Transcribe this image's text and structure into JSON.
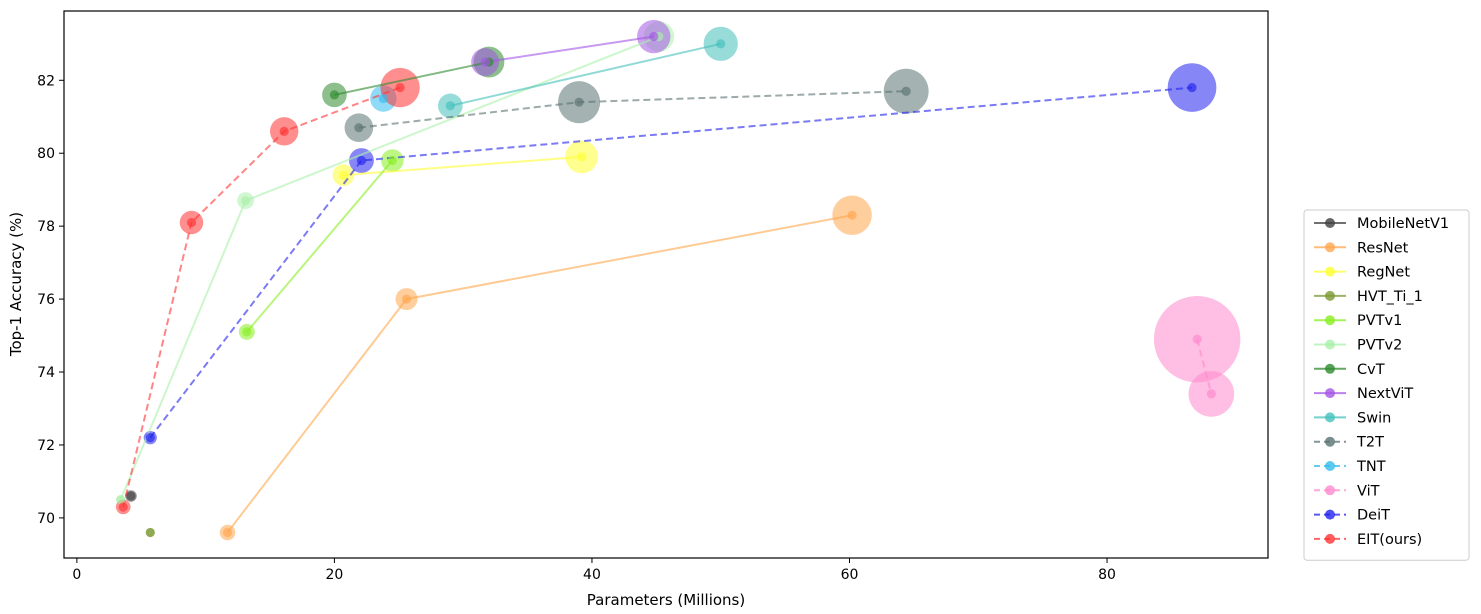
{
  "chart_data": {
    "type": "scatter",
    "xlabel": "Parameters (Millions)",
    "ylabel": "Top-1 Accuracy (%)",
    "xlim": [
      -1,
      92.5
    ],
    "ylim": [
      68.9,
      83.9
    ],
    "xticks": [
      0,
      20,
      40,
      60,
      80
    ],
    "yticks": [
      70,
      72,
      74,
      76,
      78,
      80,
      82
    ],
    "legend_position": "right",
    "series": [
      {
        "name": "MobileNetV1",
        "color": "#404040",
        "dash": false,
        "x": [
          4.2
        ],
        "y": [
          70.6
        ],
        "size": [
          1
        ]
      },
      {
        "name": "ResNet",
        "color": "#ffa64d",
        "dash": false,
        "x": [
          11.7,
          25.6,
          60.2
        ],
        "y": [
          69.6,
          76.0,
          78.3
        ],
        "size": [
          1.8,
          3.6,
          11.6
        ]
      },
      {
        "name": "RegNet",
        "color": "#ffff33",
        "dash": false,
        "x": [
          20.7,
          39.2
        ],
        "y": [
          79.4,
          79.9
        ],
        "size": [
          3.5,
          8.0
        ]
      },
      {
        "name": "HVT_Ti_1",
        "color": "#7a9a33",
        "dash": false,
        "x": [
          5.7
        ],
        "y": [
          69.6
        ],
        "size": [
          0.6
        ]
      },
      {
        "name": "PVTv1",
        "color": "#88ee22",
        "dash": false,
        "x": [
          13.2,
          24.5
        ],
        "y": [
          75.1,
          79.8
        ],
        "size": [
          1.9,
          3.8
        ]
      },
      {
        "name": "PVTv2",
        "color": "#aaf0aa",
        "dash": false,
        "x": [
          3.4,
          13.1,
          45.2
        ],
        "y": [
          70.5,
          78.7,
          83.2
        ],
        "size": [
          0.6,
          2.1,
          6.9
        ]
      },
      {
        "name": "CvT",
        "color": "#2e8b2e",
        "dash": false,
        "x": [
          20,
          32
        ],
        "y": [
          81.6,
          82.5
        ],
        "size": [
          4.5,
          7.1
        ]
      },
      {
        "name": "NextViT",
        "color": "#a455e6",
        "dash": false,
        "x": [
          31.7,
          44.8
        ],
        "y": [
          82.5,
          83.2
        ],
        "size": [
          5.8,
          8.3
        ]
      },
      {
        "name": "Swin",
        "color": "#44c0bb",
        "dash": false,
        "x": [
          29,
          50
        ],
        "y": [
          81.3,
          83.0
        ],
        "size": [
          4.5,
          8.7
        ]
      },
      {
        "name": "T2T",
        "color": "#5a7272",
        "dash": true,
        "x": [
          21.9,
          39,
          64.4
        ],
        "y": [
          80.7,
          81.4,
          81.7
        ],
        "size": [
          6.1,
          13.2,
          15.0
        ]
      },
      {
        "name": "TNT",
        "color": "#33bbee",
        "dash": true,
        "x": [
          23.8
        ],
        "y": [
          81.5
        ],
        "size": [
          5.2
        ]
      },
      {
        "name": "ViT",
        "color": "#ff88cc",
        "dash": true,
        "x": [
          87,
          88.1
        ],
        "y": [
          74.9,
          73.4
        ],
        "size": [
          55.5,
          15.5
        ]
      },
      {
        "name": "DeiT",
        "color": "#2222ee",
        "dash": true,
        "x": [
          5.7,
          22.1,
          86.6
        ],
        "y": [
          72.2,
          79.8,
          81.8
        ],
        "size": [
          1.3,
          4.6,
          17.6
        ]
      },
      {
        "name": "EIT(ours)",
        "color": "#ff3333",
        "dash": true,
        "x": [
          3.6,
          8.9,
          16.1,
          25.1
        ],
        "y": [
          70.3,
          78.1,
          80.6,
          81.8
        ],
        "size": [
          1.6,
          4.1,
          6.0,
          11.5
        ]
      }
    ]
  }
}
